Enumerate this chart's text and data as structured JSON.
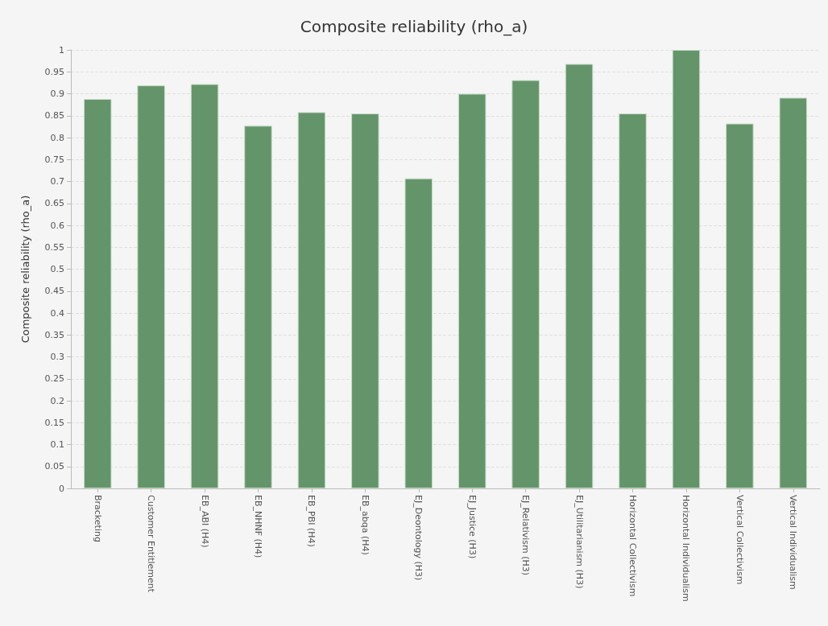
{
  "chart_data": {
    "type": "bar",
    "title": "Composite reliability (rho_a)",
    "ylabel": "Composite reliability (rho_a)",
    "categories": [
      "Bracketing",
      "Customer Entitlement",
      "EB_ABI (H4)",
      "EB_NHNF (H4)",
      "EB_PBI (H4)",
      "EB_abqa (H4)",
      "EJ_Deontology (H3)",
      "EJ_Justice (H3)",
      "EJ_Relativism (H3)",
      "EJ_Utilitarianism (H3)",
      "Horizontal Collectivism",
      "Horizontal Individualism",
      "Vertical Collectivism",
      "Vertical Individualism"
    ],
    "values": [
      0.888,
      0.919,
      0.922,
      0.827,
      0.858,
      0.855,
      0.707,
      0.9,
      0.931,
      0.968,
      0.855,
      1.0,
      0.832,
      0.891
    ],
    "color": "#64956a",
    "ylim": [
      0,
      1
    ],
    "yticks": [
      0,
      0.05,
      0.1,
      0.15,
      0.2,
      0.25,
      0.3,
      0.35,
      0.4,
      0.45,
      0.5,
      0.55,
      0.6,
      0.65,
      0.7,
      0.75,
      0.8,
      0.85,
      0.9,
      0.95,
      1
    ],
    "grid": "y"
  }
}
